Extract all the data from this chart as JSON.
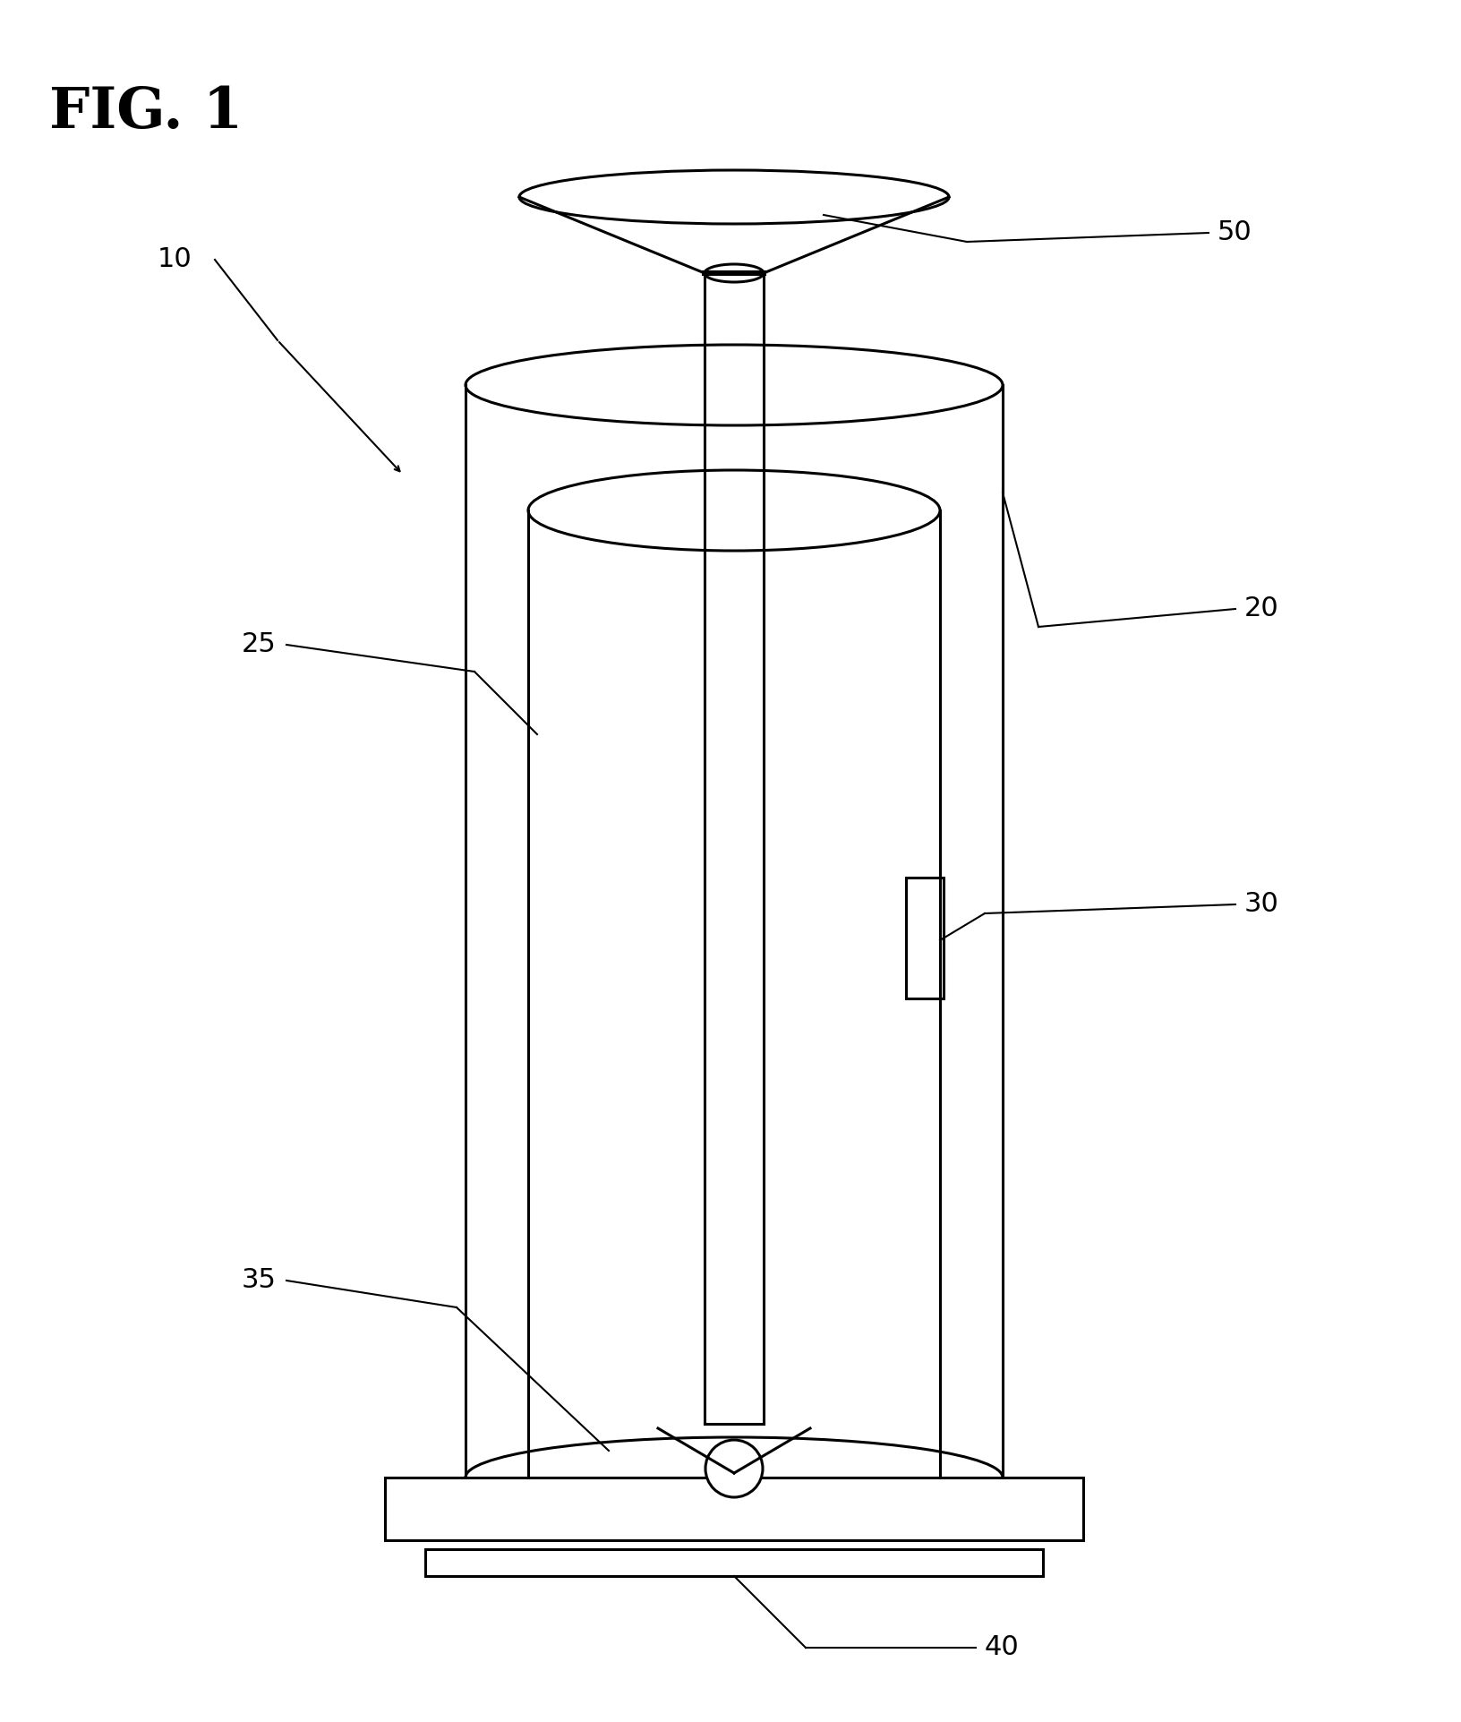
{
  "title": "FIG. 1",
  "bg_color": "#ffffff",
  "line_color": "#000000",
  "lw": 2.2,
  "label_fontsize": 22
}
